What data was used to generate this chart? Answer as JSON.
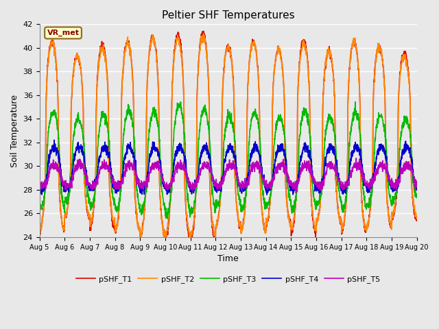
{
  "title": "Peltier SHF Temperatures",
  "xlabel": "Time",
  "ylabel": "Soil Temperature",
  "ylim": [
    24,
    42
  ],
  "yticks": [
    24,
    26,
    28,
    30,
    32,
    34,
    36,
    38,
    40,
    42
  ],
  "annotation_text": "VR_met",
  "annotation_bbox_facecolor": "#ffffcc",
  "annotation_bbox_edgecolor": "#8B6914",
  "annotation_text_color": "#8B0000",
  "plot_bg_color": "#e8e8e8",
  "grid_color": "#ffffff",
  "legend_entries": [
    "pSHF_T1",
    "pSHF_T2",
    "pSHF_T3",
    "pSHF_T4",
    "pSHF_T5"
  ],
  "line_colors": [
    "#dd0000",
    "#ff8800",
    "#00bb00",
    "#0000cc",
    "#bb00bb"
  ],
  "line_widths": [
    1.2,
    1.2,
    1.2,
    1.2,
    1.2
  ],
  "xtick_labels": [
    "Aug 5",
    "Aug 6",
    "Aug 7",
    "Aug 8",
    "Aug 9",
    "Aug 10",
    "Aug 11",
    "Aug 12",
    "Aug 13",
    "Aug 14",
    "Aug 15",
    "Aug 16",
    "Aug 17",
    "Aug 18",
    "Aug 19",
    "Aug 20"
  ],
  "num_days": 15,
  "points_per_day": 144
}
